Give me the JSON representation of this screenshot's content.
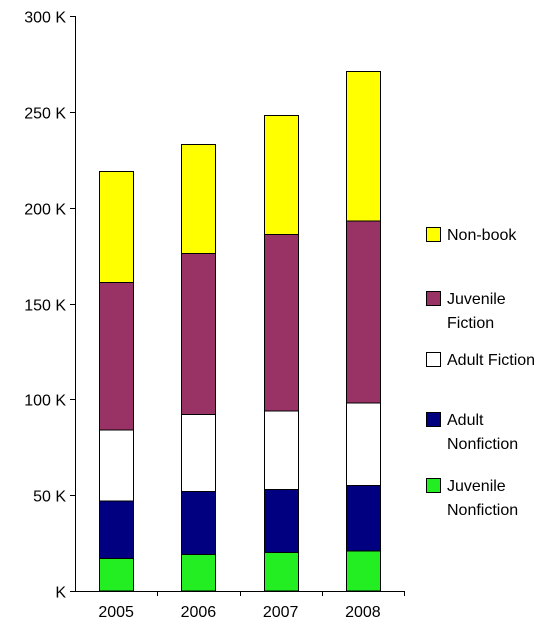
{
  "chart_data": {
    "type": "bar",
    "stacked": true,
    "title": "",
    "xlabel": "",
    "ylabel": "",
    "categories": [
      "2005",
      "2006",
      "2007",
      "2008"
    ],
    "ylim": [
      0,
      300000
    ],
    "yticks": [
      0,
      50000,
      100000,
      150000,
      200000,
      250000,
      300000
    ],
    "ytick_labels": [
      "K",
      "50 K",
      "100 K",
      "150 K",
      "200 K",
      "250 K",
      "300 K"
    ],
    "grid": false,
    "legend_position": "right",
    "series": [
      {
        "name": "Juvenile Nonfiction",
        "legend_lines": [
          "Juvenile",
          "Nonfiction"
        ],
        "color": "#22ee22",
        "values": [
          17000,
          19000,
          20000,
          21000
        ]
      },
      {
        "name": "Adult Nonfiction",
        "legend_lines": [
          "Adult",
          "Nonfiction"
        ],
        "color": "#000080",
        "values": [
          30000,
          33000,
          33000,
          34000
        ]
      },
      {
        "name": "Adult Fiction",
        "legend_lines": [
          "Adult Fiction"
        ],
        "color": "#ffffff",
        "values": [
          37000,
          40000,
          41000,
          43000
        ]
      },
      {
        "name": "Juvenile Fiction",
        "legend_lines": [
          "Juvenile",
          "Fiction"
        ],
        "color": "#993366",
        "values": [
          77000,
          84000,
          92000,
          95000
        ]
      },
      {
        "name": "Non-book",
        "legend_lines": [
          "Non-book"
        ],
        "color": "#ffff00",
        "values": [
          58000,
          57000,
          62000,
          78000
        ]
      }
    ],
    "legend_order": [
      "Non-book",
      "Juvenile Fiction",
      "Adult Fiction",
      "Adult Nonfiction",
      "Juvenile Nonfiction"
    ]
  }
}
